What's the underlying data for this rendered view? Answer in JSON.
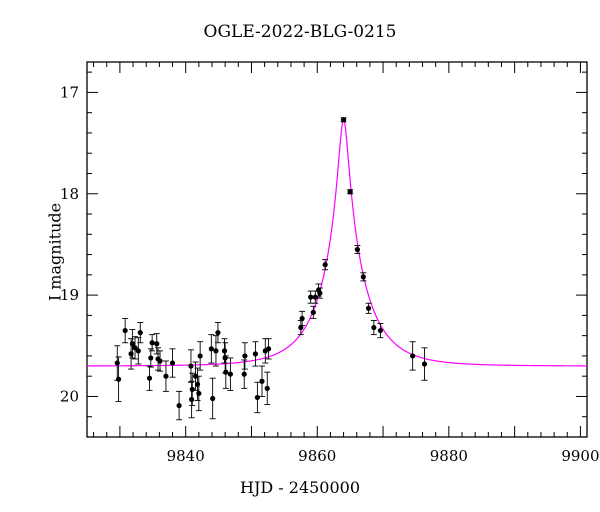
{
  "chart_data": {
    "type": "scatter",
    "title": "OGLE-2022-BLG-0215",
    "xlabel": "HJD - 2450000",
    "ylabel": "I magnitude",
    "xlim": [
      9825,
      9901
    ],
    "ylim": [
      20.4,
      16.7
    ],
    "y_inverted": true,
    "xticks": [
      9840,
      9860,
      9880,
      9900
    ],
    "yticks": [
      17,
      18,
      19,
      20
    ],
    "grid": false,
    "colors": {
      "data": "#000000",
      "model": "#ff00ff",
      "axes": "#000000"
    },
    "model": {
      "type": "microlensing-pspl",
      "t0": 9864.0,
      "baseline_mag": 19.7,
      "peak_mag": 17.27,
      "tE": 6.5
    },
    "series": [
      {
        "x": [
          9829.6,
          9829.8,
          9830.8,
          9831.7,
          9831.9,
          9832.3,
          9832.8,
          9833.1,
          9834.5,
          9834.7,
          9834.9,
          9835.6,
          9835.8,
          9836.1,
          9837.0,
          9838.0,
          9839.0,
          9840.8,
          9840.9,
          9841.0,
          9841.5,
          9841.8,
          9842.0,
          9842.2,
          9843.9,
          9844.1,
          9844.6,
          9844.9,
          9845.9,
          9846.0,
          9846.1,
          9846.8,
          9848.9,
          9849.0,
          9850.6,
          9850.9,
          9851.6,
          9852.1,
          9852.4,
          9852.6,
          9857.5,
          9857.7,
          9859.0,
          9859.4,
          9859.7,
          9860.2,
          9860.4,
          9861.2,
          9864.0,
          9865.0,
          9866.1,
          9867.0,
          9867.8,
          9868.6,
          9869.6,
          9874.5,
          9876.3
        ],
        "y": [
          19.67,
          19.83,
          19.35,
          19.58,
          19.48,
          19.52,
          19.55,
          19.37,
          19.82,
          19.62,
          19.47,
          19.48,
          19.63,
          19.65,
          19.8,
          19.67,
          20.09,
          19.7,
          20.03,
          19.93,
          19.8,
          19.88,
          19.97,
          19.6,
          19.53,
          20.02,
          19.55,
          19.37,
          19.55,
          19.62,
          19.76,
          19.78,
          19.78,
          19.6,
          19.58,
          20.01,
          19.85,
          19.55,
          19.92,
          19.53,
          19.32,
          19.23,
          19.02,
          19.17,
          19.02,
          18.95,
          18.98,
          18.7,
          17.27,
          17.98,
          18.55,
          18.82,
          19.13,
          19.32,
          19.35,
          19.6,
          19.68
        ],
        "yerr": [
          0.17,
          0.22,
          0.12,
          0.15,
          0.14,
          0.11,
          0.13,
          0.1,
          0.12,
          0.09,
          0.08,
          0.1,
          0.11,
          0.1,
          0.15,
          0.14,
          0.14,
          0.16,
          0.18,
          0.16,
          0.14,
          0.16,
          0.17,
          0.14,
          0.14,
          0.2,
          0.15,
          0.1,
          0.12,
          0.15,
          0.16,
          0.16,
          0.14,
          0.13,
          0.12,
          0.15,
          0.15,
          0.12,
          0.16,
          0.1,
          0.07,
          0.07,
          0.06,
          0.06,
          0.06,
          0.06,
          0.05,
          0.05,
          0.02,
          0.02,
          0.04,
          0.04,
          0.05,
          0.07,
          0.07,
          0.14,
          0.16
        ]
      }
    ]
  }
}
